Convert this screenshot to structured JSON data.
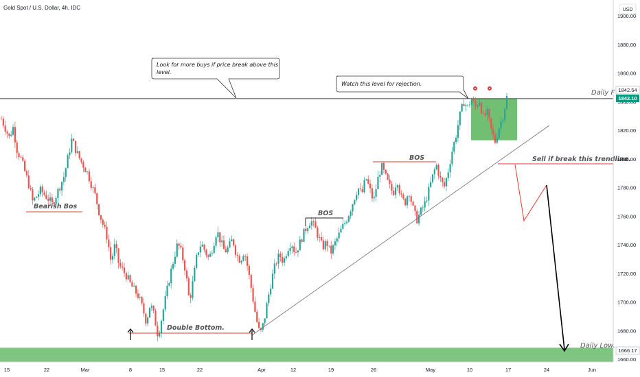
{
  "header": {
    "symbol_title": "Gold Spot / U.S. Dollar, 4h, IDC",
    "currency_label": "USD"
  },
  "price_badges": {
    "upper": "1842.54",
    "current": "1842.10",
    "low": "1666.17"
  },
  "annotations": {
    "buy_note": "Look for more buys if price break above this level.",
    "rejection_note": "Watch this level for rejection.",
    "daily_f": "Daily F",
    "bearish_bos": "Bearish Bos",
    "bos_1": "BOS",
    "bos_2": "BOS",
    "double_bottom": "Double Bottom.",
    "sell_note": "Sell if break this trendline.",
    "daily_low": "Daily Low."
  },
  "colors": {
    "bull_candle": "#26a69a",
    "bear_candle": "#ef5350",
    "resistance_zone": "#4caf50",
    "daily_low_zone": "#66bb6a",
    "current_price": "#089981",
    "red_line": "#e53935",
    "axis_text": "#131722"
  },
  "chart_data": {
    "type": "candlestick",
    "title": "Gold Spot / U.S. Dollar, 4h, IDC",
    "x_tick_labels": [
      "15",
      "22",
      "Mar",
      "8",
      "15",
      "22",
      "Apr",
      "12",
      "19",
      "26",
      "May",
      "10",
      "17",
      "24",
      "Jun"
    ],
    "y_tick_labels": [
      1660,
      1680,
      1700,
      1720,
      1740,
      1760,
      1780,
      1800,
      1820,
      1840,
      1860,
      1880,
      1900
    ],
    "ylim": [
      1658,
      1908
    ],
    "price_path": [
      [
        0,
        1828
      ],
      [
        2,
        1815
      ],
      [
        3,
        1822
      ],
      [
        4,
        1806
      ],
      [
        5,
        1800
      ],
      [
        7,
        1782
      ],
      [
        8,
        1770
      ],
      [
        10,
        1778
      ],
      [
        12,
        1772
      ],
      [
        13,
        1768
      ],
      [
        16,
        1788
      ],
      [
        18,
        1814
      ],
      [
        19,
        1806
      ],
      [
        20,
        1800
      ],
      [
        22,
        1790
      ],
      [
        24,
        1774
      ],
      [
        25,
        1762
      ],
      [
        27,
        1745
      ],
      [
        28,
        1728
      ],
      [
        29,
        1740
      ],
      [
        30,
        1726
      ],
      [
        32,
        1718
      ],
      [
        33,
        1712
      ],
      [
        35,
        1704
      ],
      [
        36,
        1696
      ],
      [
        37,
        1686
      ],
      [
        38,
        1699
      ],
      [
        39,
        1690
      ],
      [
        40,
        1676
      ],
      [
        41,
        1690
      ],
      [
        42,
        1704
      ],
      [
        43,
        1718
      ],
      [
        44,
        1730
      ],
      [
        45,
        1741
      ],
      [
        46,
        1734
      ],
      [
        47,
        1722
      ],
      [
        48,
        1700
      ],
      [
        49,
        1716
      ],
      [
        50,
        1734
      ],
      [
        51,
        1741
      ],
      [
        53,
        1730
      ],
      [
        54,
        1739
      ],
      [
        55,
        1750
      ],
      [
        56,
        1742
      ],
      [
        57,
        1735
      ],
      [
        58,
        1738
      ],
      [
        59,
        1744
      ],
      [
        60,
        1733
      ],
      [
        61,
        1729
      ],
      [
        62,
        1736
      ],
      [
        63,
        1722
      ],
      [
        64,
        1706
      ],
      [
        65,
        1689
      ],
      [
        66,
        1677
      ],
      [
        67,
        1686
      ],
      [
        68,
        1702
      ],
      [
        69,
        1716
      ],
      [
        70,
        1727
      ],
      [
        71,
        1733
      ],
      [
        72,
        1728
      ],
      [
        73,
        1737
      ],
      [
        74,
        1742
      ],
      [
        75,
        1734
      ],
      [
        76,
        1740
      ],
      [
        77,
        1747
      ],
      [
        78,
        1753
      ],
      [
        79,
        1757
      ],
      [
        80,
        1752
      ],
      [
        81,
        1745
      ],
      [
        82,
        1738
      ],
      [
        83,
        1742
      ],
      [
        84,
        1734
      ],
      [
        85,
        1740
      ],
      [
        86,
        1746
      ],
      [
        87,
        1752
      ],
      [
        88,
        1757
      ],
      [
        89,
        1764
      ],
      [
        90,
        1772
      ],
      [
        91,
        1780
      ],
      [
        92,
        1775
      ],
      [
        93,
        1787
      ],
      [
        94,
        1779
      ],
      [
        95,
        1770
      ],
      [
        96,
        1785
      ],
      [
        97,
        1795
      ],
      [
        98,
        1788
      ],
      [
        99,
        1781
      ],
      [
        100,
        1776
      ],
      [
        101,
        1786
      ],
      [
        102,
        1773
      ],
      [
        103,
        1769
      ],
      [
        104,
        1778
      ],
      [
        105,
        1766
      ],
      [
        106,
        1757
      ],
      [
        107,
        1763
      ],
      [
        108,
        1768
      ],
      [
        109,
        1777
      ],
      [
        110,
        1787
      ],
      [
        111,
        1796
      ],
      [
        112,
        1786
      ],
      [
        113,
        1780
      ],
      [
        114,
        1791
      ],
      [
        115,
        1805
      ],
      [
        116,
        1816
      ],
      [
        117,
        1830
      ],
      [
        118,
        1840
      ],
      [
        119,
        1836
      ],
      [
        120,
        1842
      ],
      [
        121,
        1836
      ],
      [
        122,
        1841
      ],
      [
        123,
        1829
      ],
      [
        124,
        1832
      ],
      [
        125,
        1820
      ],
      [
        126,
        1812
      ],
      [
        127,
        1822
      ],
      [
        128,
        1830
      ],
      [
        129,
        1843
      ]
    ],
    "zones": {
      "resistance": [
        1813,
        1842
      ],
      "daily_low": [
        1660,
        1668
      ]
    },
    "levels": {
      "daily_f": 1842.1,
      "daily_low": 1666.17
    },
    "projection": [
      1797,
      1757,
      1781,
      1666
    ]
  }
}
